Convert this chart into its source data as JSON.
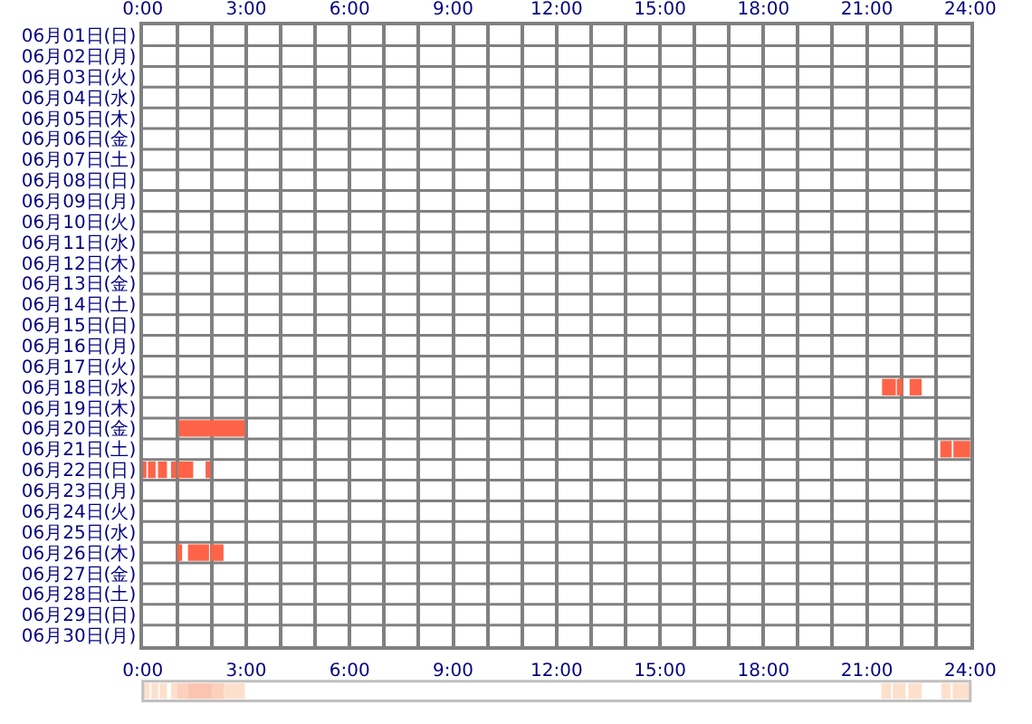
{
  "chart_data": [
    {
      "type": "bar",
      "orientation": "horizontal",
      "grid": true,
      "categories": [
        "06月01日(日)",
        "06月02日(月)",
        "06月03日(火)",
        "06月04日(水)",
        "06月05日(木)",
        "06月06日(金)",
        "06月07日(土)",
        "06月08日(日)",
        "06月09日(月)",
        "06月10日(火)",
        "06月11日(水)",
        "06月12日(木)",
        "06月13日(金)",
        "06月14日(土)",
        "06月15日(日)",
        "06月16日(月)",
        "06月17日(火)",
        "06月18日(水)",
        "06月19日(木)",
        "06月20日(金)",
        "06月21日(土)",
        "06月22日(日)",
        "06月23日(月)",
        "06月24日(火)",
        "06月25日(水)",
        "06月26日(木)",
        "06月27日(金)",
        "06月28日(土)",
        "06月29日(日)",
        "06月30日(月)"
      ],
      "xlim": [
        0,
        24
      ],
      "xticks": [
        {
          "value": 0,
          "label": "0:00"
        },
        {
          "value": 1,
          "label": null
        },
        {
          "value": 2,
          "label": null
        },
        {
          "value": 3,
          "label": "3:00"
        },
        {
          "value": 4,
          "label": null
        },
        {
          "value": 5,
          "label": null
        },
        {
          "value": 6,
          "label": "6:00"
        },
        {
          "value": 7,
          "label": null
        },
        {
          "value": 8,
          "label": null
        },
        {
          "value": 9,
          "label": "9:00"
        },
        {
          "value": 10,
          "label": null
        },
        {
          "value": 11,
          "label": null
        },
        {
          "value": 12,
          "label": "12:00"
        },
        {
          "value": 13,
          "label": null
        },
        {
          "value": 14,
          "label": null
        },
        {
          "value": 15,
          "label": "15:00"
        },
        {
          "value": 16,
          "label": null
        },
        {
          "value": 17,
          "label": null
        },
        {
          "value": 18,
          "label": "18:00"
        },
        {
          "value": 19,
          "label": null
        },
        {
          "value": 20,
          "label": null
        },
        {
          "value": 21,
          "label": "21:00"
        },
        {
          "value": 22,
          "label": null
        },
        {
          "value": 23,
          "label": null
        },
        {
          "value": 24,
          "label": "24:00"
        }
      ],
      "series": [
        {
          "color": "#ff6347",
          "base": [
            null,
            null,
            null,
            null,
            null,
            null,
            null,
            null,
            null,
            null,
            null,
            null,
            null,
            null,
            null,
            null,
            null,
            21.44,
            null,
            1.05,
            23.13,
            0,
            null,
            null,
            null,
            1.0,
            null,
            null,
            null,
            null
          ],
          "values": [
            null,
            null,
            null,
            null,
            null,
            null,
            null,
            null,
            null,
            null,
            null,
            null,
            null,
            null,
            null,
            null,
            null,
            0.4,
            null,
            1.91,
            0.33,
            0.08,
            null,
            null,
            null,
            0.14,
            null,
            null,
            null,
            null
          ]
        },
        {
          "color": "#ff6347",
          "base": [
            null,
            null,
            null,
            null,
            null,
            null,
            null,
            null,
            null,
            null,
            null,
            null,
            null,
            null,
            null,
            null,
            null,
            21.87,
            null,
            null,
            23.51,
            0.15,
            null,
            null,
            null,
            1.31,
            null,
            null,
            null,
            null
          ],
          "values": [
            null,
            null,
            null,
            null,
            null,
            null,
            null,
            null,
            null,
            null,
            null,
            null,
            null,
            null,
            null,
            null,
            null,
            0.17,
            null,
            null,
            0.49,
            0.22,
            null,
            null,
            null,
            0.61,
            null,
            null,
            null,
            null
          ]
        },
        {
          "color": "#ff6347",
          "base": [
            null,
            null,
            null,
            null,
            null,
            null,
            null,
            null,
            null,
            null,
            null,
            null,
            null,
            null,
            null,
            null,
            null,
            22.24,
            null,
            null,
            null,
            0.44,
            null,
            null,
            null,
            1.97,
            null,
            null,
            null,
            null
          ],
          "values": [
            null,
            null,
            null,
            null,
            null,
            null,
            null,
            null,
            null,
            null,
            null,
            null,
            null,
            null,
            null,
            null,
            null,
            0.35,
            null,
            null,
            null,
            0.26,
            null,
            null,
            null,
            0.37,
            null,
            null,
            null,
            null
          ]
        },
        {
          "color": "#ff6347",
          "base": [
            null,
            null,
            null,
            null,
            null,
            null,
            null,
            null,
            null,
            null,
            null,
            null,
            null,
            null,
            null,
            null,
            null,
            null,
            null,
            null,
            null,
            0.82,
            null,
            null,
            null,
            null,
            null,
            null,
            null,
            null
          ],
          "values": [
            null,
            null,
            null,
            null,
            null,
            null,
            null,
            null,
            null,
            null,
            null,
            null,
            null,
            null,
            null,
            null,
            null,
            null,
            null,
            null,
            null,
            0.13,
            null,
            null,
            null,
            null,
            null,
            null,
            null,
            null
          ]
        },
        {
          "color": "#ff6347",
          "base": [
            null,
            null,
            null,
            null,
            null,
            null,
            null,
            null,
            null,
            null,
            null,
            null,
            null,
            null,
            null,
            null,
            null,
            null,
            null,
            null,
            null,
            1.0,
            null,
            null,
            null,
            null,
            null,
            null,
            null,
            null
          ],
          "values": [
            null,
            null,
            null,
            null,
            null,
            null,
            null,
            null,
            null,
            null,
            null,
            null,
            null,
            null,
            null,
            null,
            null,
            null,
            null,
            null,
            null,
            0.46,
            null,
            null,
            null,
            null,
            null,
            null,
            null,
            null
          ]
        },
        {
          "color": "#ff6347",
          "base": [
            null,
            null,
            null,
            null,
            null,
            null,
            null,
            null,
            null,
            null,
            null,
            null,
            null,
            null,
            null,
            null,
            null,
            null,
            null,
            null,
            null,
            1.82,
            null,
            null,
            null,
            null,
            null,
            null,
            null,
            null
          ],
          "values": [
            null,
            null,
            null,
            null,
            null,
            null,
            null,
            null,
            null,
            null,
            null,
            null,
            null,
            null,
            null,
            null,
            null,
            null,
            null,
            null,
            null,
            0.14,
            null,
            null,
            null,
            null,
            null,
            null,
            null,
            null
          ]
        }
      ]
    },
    {
      "type": "bar",
      "orientation": "horizontal",
      "tick_labels": "x",
      "categories": [
        null
      ],
      "xlim": [
        0,
        24
      ],
      "xticks": [
        {
          "value": 0,
          "label": "0:00"
        },
        {
          "value": 3,
          "label": "3:00"
        },
        {
          "value": 6,
          "label": "6:00"
        },
        {
          "value": 9,
          "label": "9:00"
        },
        {
          "value": 12,
          "label": "12:00"
        },
        {
          "value": 15,
          "label": "15:00"
        },
        {
          "value": 18,
          "label": "18:00"
        },
        {
          "value": 21,
          "label": "21:00"
        },
        {
          "value": 24,
          "label": "24:00"
        }
      ],
      "series": [
        {
          "color": "#fde0cc",
          "base": [
            0.03
          ],
          "values": [
            0.17
          ]
        },
        {
          "color": "#fde0cc",
          "base": [
            0.25
          ],
          "values": [
            0.2
          ]
        },
        {
          "color": "#fde0cc",
          "base": [
            0.49
          ],
          "values": [
            0.21
          ]
        },
        {
          "color": "#fde0cc",
          "base": [
            0.82
          ],
          "values": [
            0.18
          ]
        },
        {
          "color": "#fcd0bc",
          "base": [
            1.0
          ],
          "values": [
            0.3
          ]
        },
        {
          "color": "#fbc4b0",
          "base": [
            1.3
          ],
          "values": [
            0.7
          ]
        },
        {
          "color": "#fcd0bc",
          "base": [
            2.0
          ],
          "values": [
            0.35
          ]
        },
        {
          "color": "#fde0cc",
          "base": [
            2.35
          ],
          "values": [
            0.61
          ]
        },
        {
          "color": "#fde0cc",
          "base": [
            21.42
          ],
          "values": [
            0.28
          ]
        },
        {
          "color": "#fde0cc",
          "base": [
            21.75
          ],
          "values": [
            0.37
          ]
        },
        {
          "color": "#fde0cc",
          "base": [
            22.2
          ],
          "values": [
            0.39
          ]
        },
        {
          "color": "#fde0cc",
          "base": [
            23.16
          ],
          "values": [
            0.27
          ]
        },
        {
          "color": "#fde0cc",
          "base": [
            23.49
          ],
          "values": [
            0.5
          ]
        }
      ]
    }
  ]
}
